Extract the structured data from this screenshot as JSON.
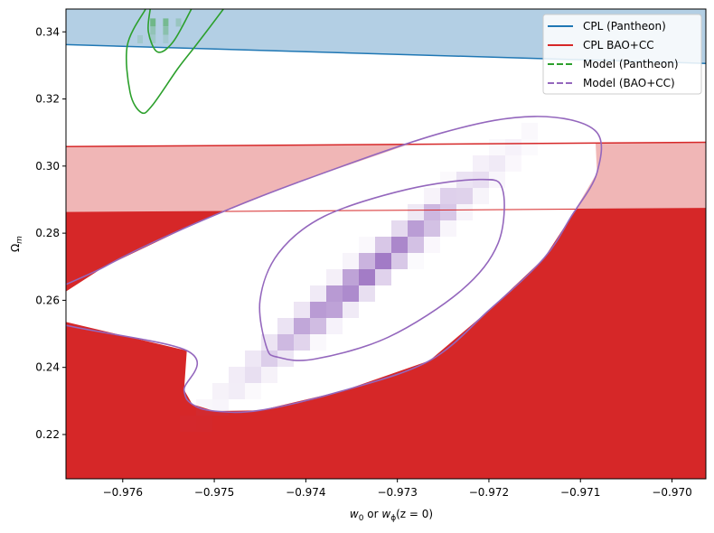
{
  "chart_data": {
    "type": "contour",
    "xlabel_base": "w",
    "xlabel_sub1": "0",
    "xlabel_mid": " or ",
    "xlabel_base2": "w",
    "xlabel_sub2": "ϕ",
    "xlabel_tail": "(z = 0)",
    "ylabel_base": "Ω",
    "ylabel_sub": "m",
    "xlim": [
      -0.97662,
      -0.96963
    ],
    "ylim": [
      0.2068,
      0.3468
    ],
    "xticks": [
      -0.976,
      -0.975,
      -0.974,
      -0.973,
      -0.972,
      -0.971,
      -0.97
    ],
    "xtick_labels": [
      "−0.976",
      "−0.975",
      "−0.974",
      "−0.973",
      "−0.972",
      "−0.971",
      "−0.970"
    ],
    "yticks": [
      0.22,
      0.24,
      0.26,
      0.28,
      0.3,
      0.32,
      0.34
    ],
    "ytick_labels": [
      "0.22",
      "0.24",
      "0.26",
      "0.28",
      "0.30",
      "0.32",
      "0.34"
    ],
    "legend_position": "top-right",
    "legend": [
      {
        "label": "CPL (Pantheon)",
        "color": "#1f77b4",
        "style": "solid"
      },
      {
        "label": "CPL BAO+CC",
        "color": "#d62728",
        "style": "solid"
      },
      {
        "label": "Model (Pantheon)",
        "color": "#2ca02c",
        "style": "dashed"
      },
      {
        "label": "Model (BAO+CC)",
        "color": "#9467bd",
        "style": "dashed"
      }
    ],
    "bands": [
      {
        "name": "cpl-pantheon-band",
        "color": "#1f77b4",
        "fill": "#b3cfe4",
        "lower_line": [
          [
            -0.97662,
            0.3362
          ],
          [
            -0.96963,
            0.3306
          ]
        ],
        "fill_to": "top"
      },
      {
        "name": "cpl-bao-outer-band",
        "color": "#d62728",
        "fill": "#f0b6b6",
        "upper_line": [
          [
            -0.97662,
            0.3058
          ],
          [
            -0.96963,
            0.3071
          ]
        ],
        "fill_to": "bottom"
      },
      {
        "name": "cpl-bao-inner-band",
        "color": "#d62728",
        "fill": "#d62728",
        "upper_line": [
          [
            -0.97662,
            0.2862
          ],
          [
            -0.96963,
            0.2874
          ]
        ],
        "fill_to": "bottom"
      }
    ],
    "contours": {
      "model_bao_outer": [
        [
          -0.97533,
          0.2333
        ],
        [
          -0.97524,
          0.229
        ],
        [
          -0.975,
          0.227
        ],
        [
          -0.9745,
          0.2272
        ],
        [
          -0.9736,
          0.233
        ],
        [
          -0.97265,
          0.242
        ],
        [
          -0.972,
          0.257
        ],
        [
          -0.9714,
          0.2725
        ],
        [
          -0.9711,
          0.285
        ],
        [
          -0.97082,
          0.298
        ],
        [
          -0.97084,
          0.3106
        ],
        [
          -0.9715,
          0.3148
        ],
        [
          -0.9725,
          0.31
        ],
        [
          -0.9741,
          0.295
        ],
        [
          -0.9752,
          0.283
        ],
        [
          -0.9762,
          0.27
        ],
        [
          -0.977,
          0.256
        ],
        [
          -0.9753,
          0.245
        ],
        [
          -0.97533,
          0.2333
        ]
      ],
      "model_bao_inner": [
        [
          -0.97443,
          0.2461
        ],
        [
          -0.9743,
          0.243
        ],
        [
          -0.9739,
          0.2425
        ],
        [
          -0.9731,
          0.249
        ],
        [
          -0.9723,
          0.263
        ],
        [
          -0.9719,
          0.277
        ],
        [
          -0.97185,
          0.293
        ],
        [
          -0.9721,
          0.296
        ],
        [
          -0.9729,
          0.293
        ],
        [
          -0.9738,
          0.285
        ],
        [
          -0.9743,
          0.274
        ],
        [
          -0.9745,
          0.26
        ],
        [
          -0.97443,
          0.2461
        ]
      ],
      "model_pantheon_outer": [
        [
          -0.97575,
          0.3468
        ],
        [
          -0.97595,
          0.336
        ],
        [
          -0.97592,
          0.322
        ],
        [
          -0.9758,
          0.316
        ],
        [
          -0.97568,
          0.318
        ],
        [
          -0.9754,
          0.329
        ],
        [
          -0.9752,
          0.336
        ],
        [
          -0.9749,
          0.3468
        ]
      ],
      "model_pantheon_inner": [
        [
          -0.9757,
          0.3468
        ],
        [
          -0.97572,
          0.34
        ],
        [
          -0.97562,
          0.334
        ],
        [
          -0.97545,
          0.337
        ],
        [
          -0.97525,
          0.3468
        ]
      ]
    },
    "heatmap": {
      "color": "#9467bd",
      "center": [
        -0.97335,
        0.2675
      ],
      "sigma_x": 0.00075,
      "sigma_y": 0.0175,
      "rho": 0.98
    }
  }
}
